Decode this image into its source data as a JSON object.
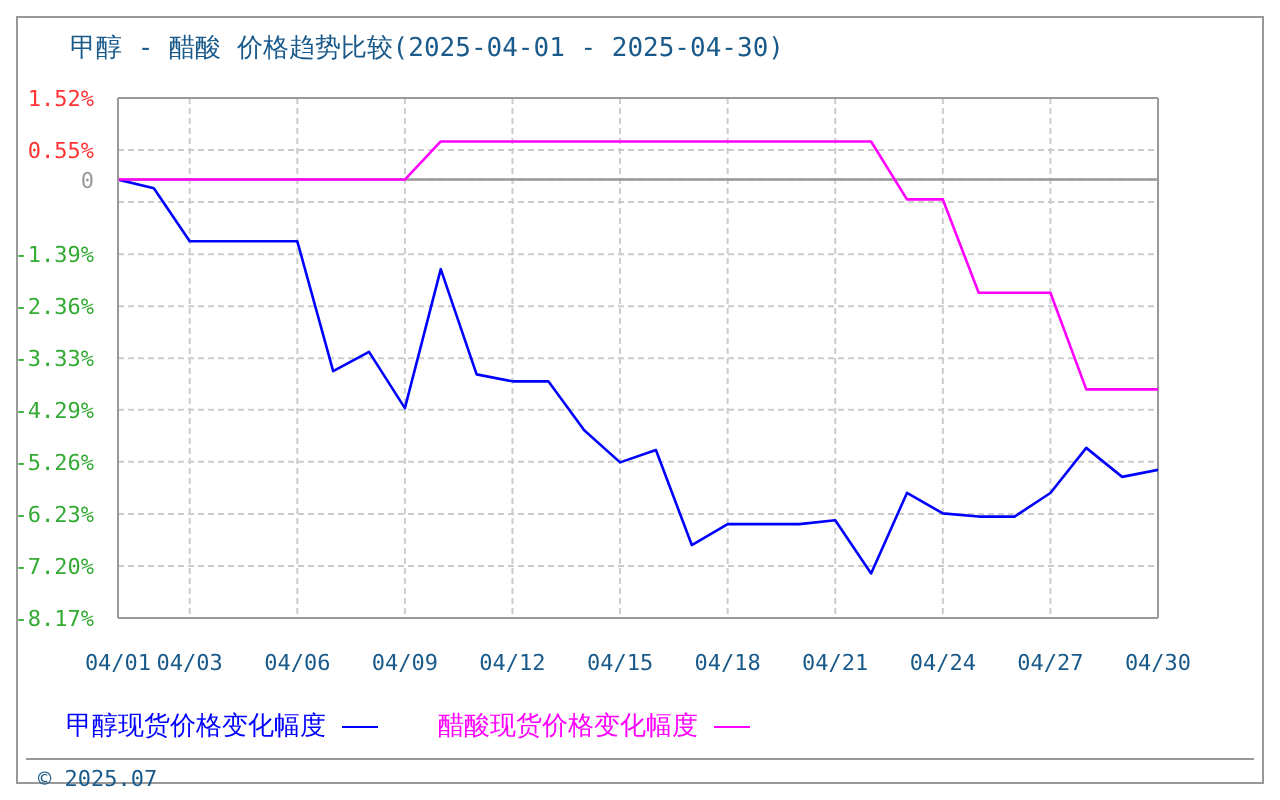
{
  "chart_data": {
    "type": "line",
    "title": "甲醇 - 醋酸 价格趋势比较(2025-04-01 - 2025-04-30)",
    "xlim": [
      "2025-04-01",
      "2025-04-30"
    ],
    "xticks": [
      {
        "value": "2025-04-01",
        "label": "04/01"
      },
      {
        "value": "2025-04-03",
        "label": "04/03"
      },
      {
        "value": "2025-04-06",
        "label": "04/06"
      },
      {
        "value": "2025-04-09",
        "label": "04/09"
      },
      {
        "value": "2025-04-12",
        "label": "04/12"
      },
      {
        "value": "2025-04-15",
        "label": "04/15"
      },
      {
        "value": "2025-04-18",
        "label": "04/18"
      },
      {
        "value": "2025-04-21",
        "label": "04/21"
      },
      {
        "value": "2025-04-24",
        "label": "04/24"
      },
      {
        "value": "2025-04-27",
        "label": "04/27"
      },
      {
        "value": "2025-04-30",
        "label": "04/30"
      }
    ],
    "ylim": [
      -8.17,
      1.52
    ],
    "yticks": [
      {
        "value": 1.52,
        "label": "1.52%"
      },
      {
        "value": 0.55,
        "label": "0.55%"
      },
      0,
      {
        "value": -0.42,
        "label": null
      },
      {
        "value": -1.39,
        "label": "-1.39%"
      },
      {
        "value": -2.36,
        "label": "-2.36%"
      },
      {
        "value": -3.33,
        "label": "-3.33%"
      },
      {
        "value": -4.29,
        "label": "-4.29%"
      },
      {
        "value": -5.26,
        "label": "-5.26%"
      },
      {
        "value": -6.23,
        "label": "-6.23%"
      },
      {
        "value": -7.2,
        "label": "-7.20%"
      },
      {
        "value": -8.17,
        "label": "-8.17%"
      }
    ],
    "grid": true,
    "legend": "bottom",
    "marker": "none",
    "line_style": "solid",
    "ref_lines": [
      {
        "axis": "y",
        "value": 0,
        "label": null,
        "color": "#999999"
      }
    ],
    "annotations": [
      "© 2025.07"
    ],
    "series": [
      {
        "name": "甲醇现货价格变化幅度",
        "color": "#0000ff",
        "x": [
          "2025-04-01",
          "2025-04-02",
          "2025-04-03",
          "2025-04-06",
          "2025-04-07",
          "2025-04-08",
          "2025-04-09",
          "2025-04-10",
          "2025-04-11",
          "2025-04-12",
          "2025-04-13",
          "2025-04-14",
          "2025-04-15",
          "2025-04-16",
          "2025-04-17",
          "2025-04-18",
          "2025-04-20",
          "2025-04-21",
          "2025-04-22",
          "2025-04-23",
          "2025-04-24",
          "2025-04-25",
          "2025-04-26",
          "2025-04-27",
          "2025-04-28",
          "2025-04-29",
          "2025-04-30"
        ],
        "values": [
          0,
          -0.16,
          -1.15,
          -1.15,
          -3.57,
          -3.21,
          -4.26,
          -1.67,
          -3.63,
          -3.76,
          -3.76,
          -4.67,
          -5.27,
          -5.04,
          -6.81,
          -6.42,
          -6.42,
          -6.35,
          -7.34,
          -5.84,
          -6.22,
          -6.28,
          -6.28,
          -5.84,
          -5.0,
          -5.54,
          -5.41
        ]
      },
      {
        "name": "醋酸现货价格变化幅度",
        "color": "#ff00ff",
        "x": [
          "2025-04-01",
          "2025-04-09",
          "2025-04-10",
          "2025-04-22",
          "2025-04-23",
          "2025-04-24",
          "2025-04-25",
          "2025-04-27",
          "2025-04-28",
          "2025-04-30"
        ],
        "values": [
          0,
          0,
          0.71,
          0.71,
          -0.37,
          -0.37,
          -2.11,
          -2.11,
          -3.91,
          -3.91
        ]
      }
    ]
  }
}
